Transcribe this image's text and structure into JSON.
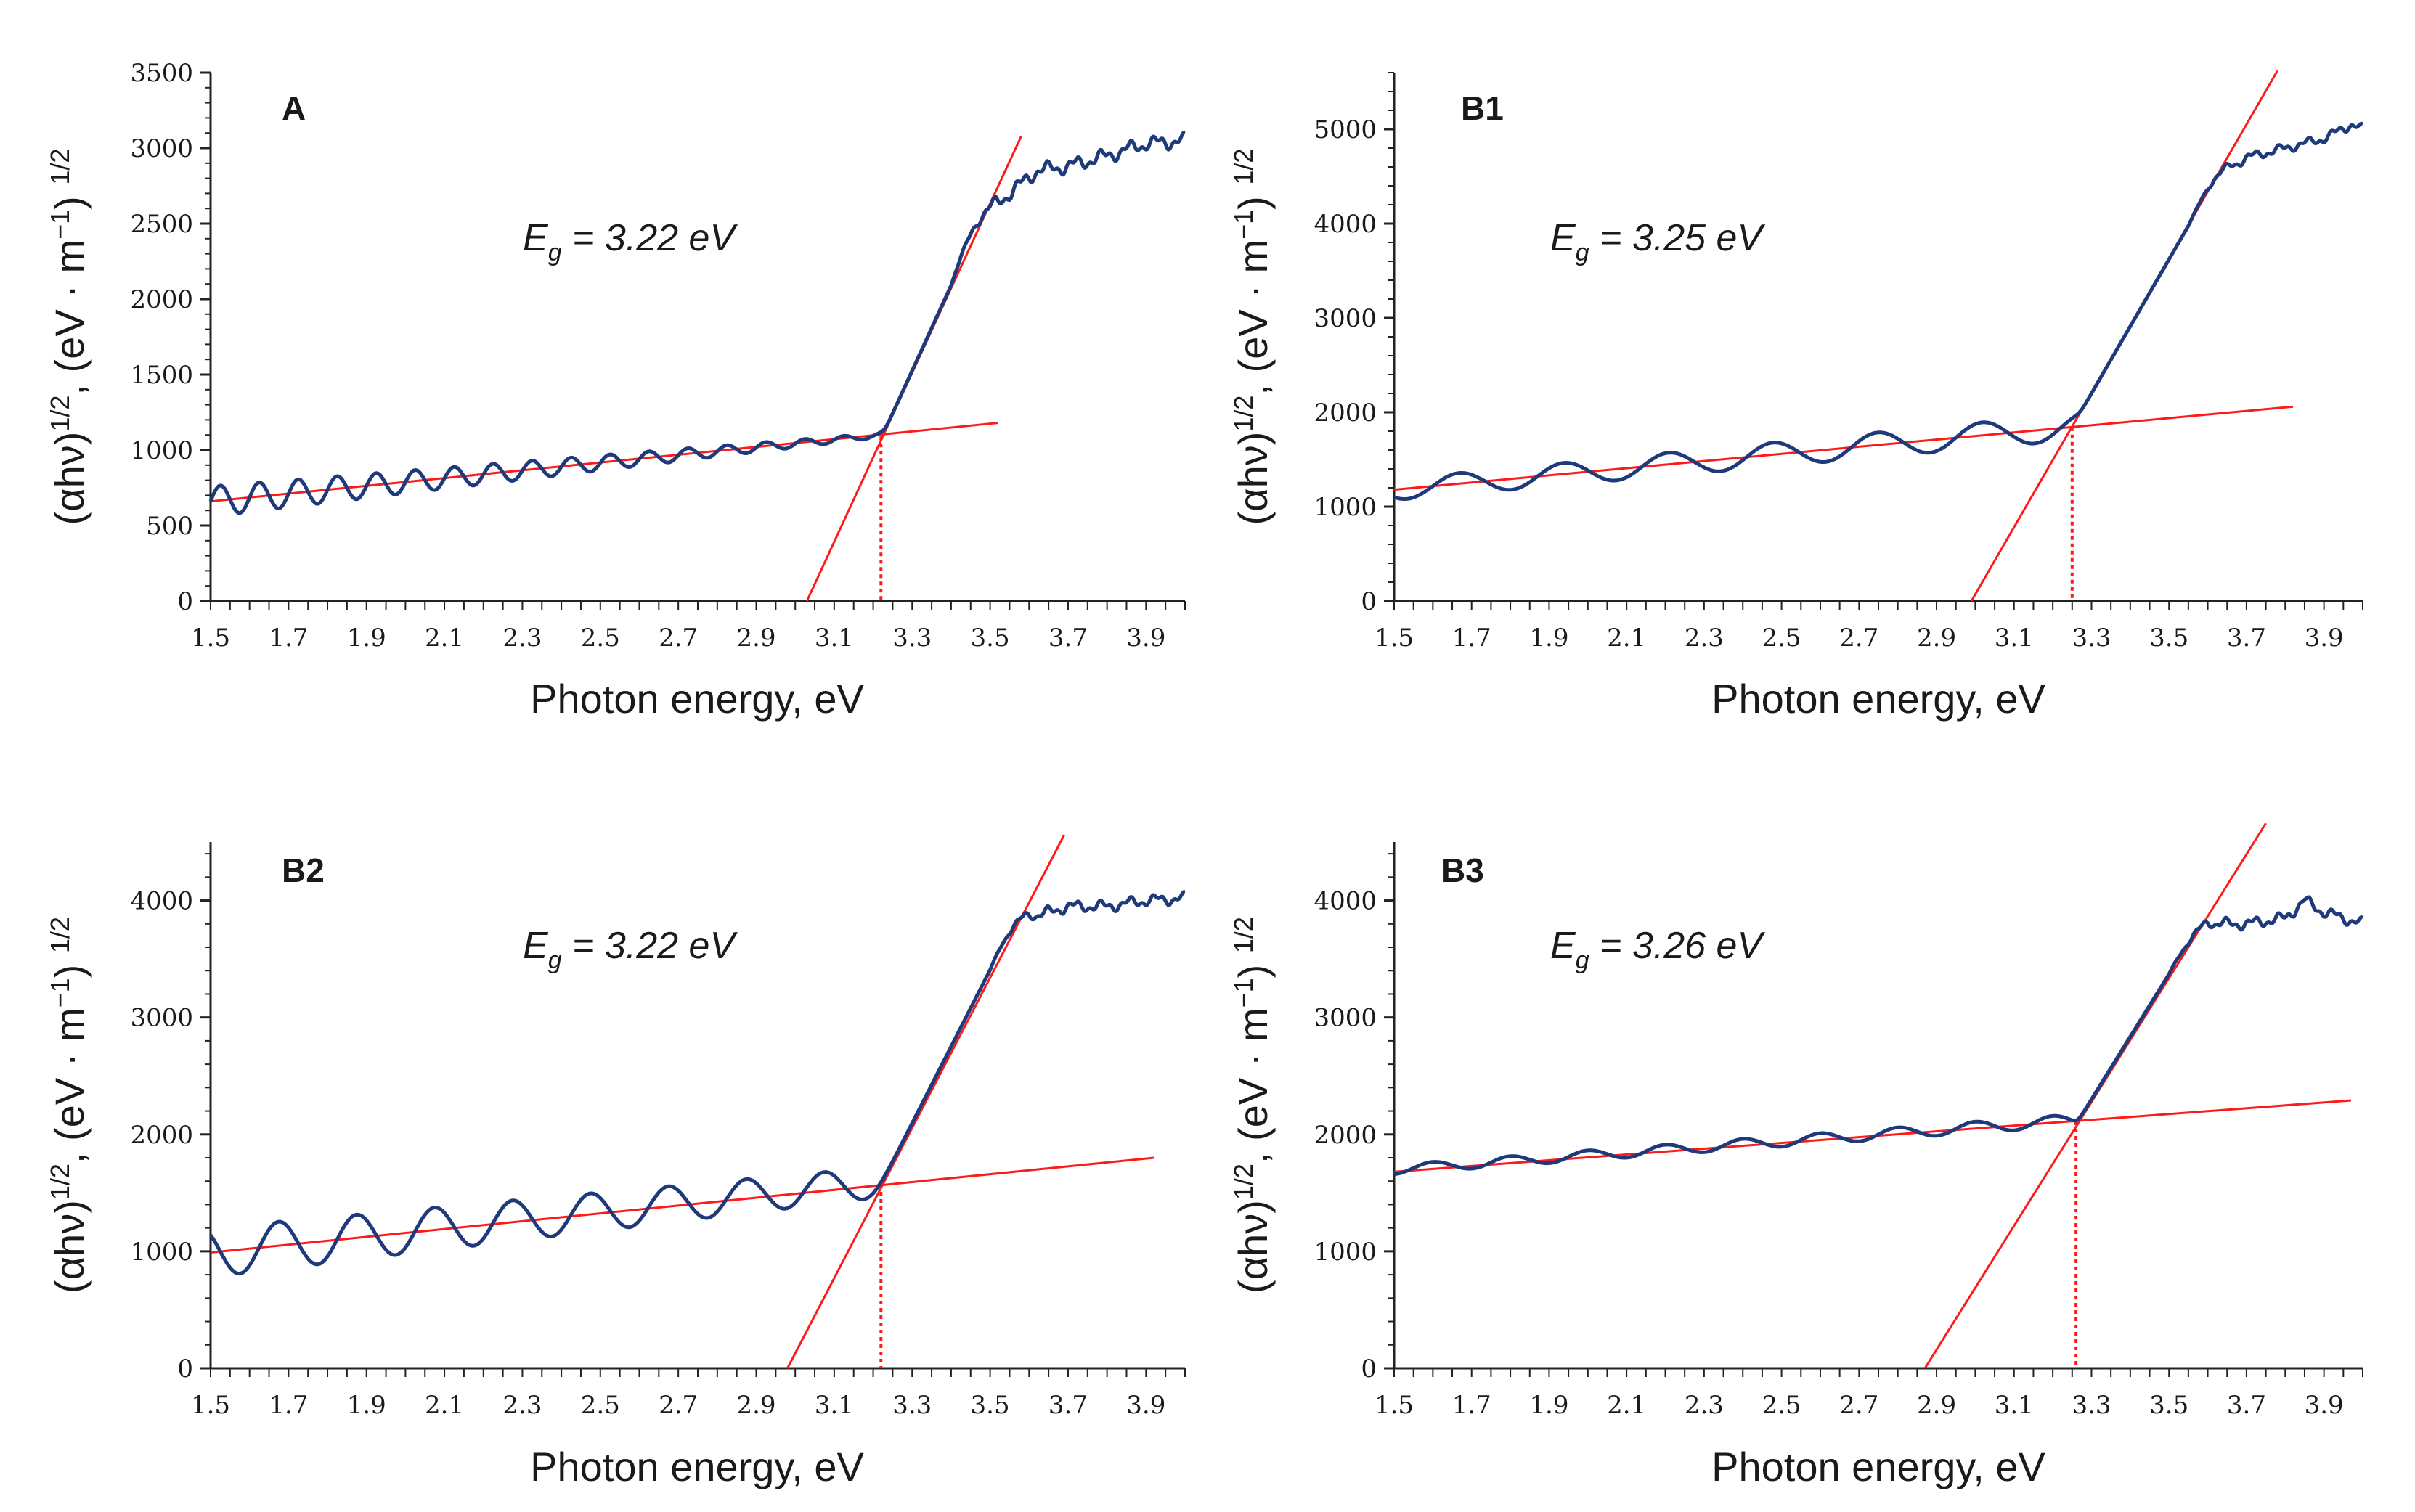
{
  "colors": {
    "curve": "#1f3a7a",
    "fit": "#ff1a1a",
    "axis": "#222222"
  },
  "chart_data": [
    {
      "type": "line",
      "title": "A",
      "eg_label": "E",
      "eg_sub": "g",
      "eg_value": " = 3.22 eV",
      "xlabel": "Photon energy, eV",
      "ylabel_parts": [
        "(αhν)",
        "1/2",
        ", (eV · m",
        "−1",
        ") ",
        "1/2"
      ],
      "xlim": [
        1.5,
        4.0
      ],
      "ylim": [
        0,
        3500
      ],
      "xticks": [
        "1.5",
        "1.7",
        "1.9",
        "2.1",
        "2.3",
        "2.5",
        "2.7",
        "2.9",
        "3.1",
        "3.3",
        "3.5",
        "3.7",
        "3.9"
      ],
      "yticks": [
        "0",
        "500",
        "1000",
        "1500",
        "2000",
        "2500",
        "3000",
        "3500"
      ],
      "baseline": {
        "y0": 660,
        "slope": 255,
        "osc_amp": 100,
        "osc_amp_end": 15,
        "osc_period": 0.1,
        "phase": 0.1
      },
      "edge": {
        "x0": 3.03,
        "slope": 5650
      },
      "plateau": {
        "x": [
          3.4,
          3.5,
          3.55,
          3.62,
          3.7,
          3.8,
          3.9,
          4.0
        ],
        "y": [
          2400,
          2600,
          2700,
          2850,
          2880,
          2950,
          3030,
          3050
        ]
      },
      "fit_lines": [
        {
          "x": [
            1.5,
            3.52
          ],
          "y": [
            660,
            1180
          ]
        },
        {
          "x": [
            3.03,
            3.58
          ],
          "y": [
            0,
            3080
          ]
        }
      ],
      "eg": 3.22,
      "eg_y": 1090
    },
    {
      "type": "line",
      "title": "B1",
      "eg_label": "E",
      "eg_sub": "g",
      "eg_value": " = 3.25 eV",
      "xlabel": "Photon energy, eV",
      "ylabel_parts": [
        "(αhν)",
        "1/2",
        ", (eV · m",
        "−1",
        ") ",
        "1/2"
      ],
      "xlim": [
        1.5,
        4.0
      ],
      "ylim": [
        0,
        5600
      ],
      "xticks": [
        "1.5",
        "1.7",
        "1.9",
        "2.1",
        "2.3",
        "2.5",
        "2.7",
        "2.9",
        "3.1",
        "3.3",
        "3.5",
        "3.7",
        "3.9"
      ],
      "yticks": [
        "0",
        "1000",
        "2000",
        "3000",
        "4000",
        "5000"
      ],
      "baseline": {
        "y0": 1180,
        "slope": 380,
        "osc_amp": 110,
        "osc_amp_end": 140,
        "osc_period": 0.27,
        "phase": 0.1
      },
      "edge": {
        "x0": 2.99,
        "slope": 7100
      },
      "plateau": {
        "x": [
          3.55,
          3.62,
          3.7,
          3.8,
          3.9,
          3.97,
          4.0
        ],
        "y": [
          4200,
          4500,
          4700,
          4800,
          4900,
          5050,
          5000
        ]
      },
      "fit_lines": [
        {
          "x": [
            1.5,
            3.82
          ],
          "y": [
            1180,
            2060
          ]
        },
        {
          "x": [
            2.99,
            3.78
          ],
          "y": [
            0,
            5620
          ]
        }
      ],
      "eg": 3.25,
      "eg_y": 1840
    },
    {
      "type": "line",
      "title": "B2",
      "eg_label": "E",
      "eg_sub": "g",
      "eg_value": " = 3.22 eV",
      "xlabel": "Photon energy, eV",
      "ylabel_parts": [
        "(αhν)",
        "1/2",
        ", (eV · m",
        "−1",
        ") ",
        "1/2"
      ],
      "xlim": [
        1.5,
        4.0
      ],
      "ylim": [
        0,
        4500
      ],
      "xticks": [
        "1.5",
        "1.7",
        "1.9",
        "2.1",
        "2.3",
        "2.5",
        "2.7",
        "2.9",
        "3.1",
        "3.3",
        "3.5",
        "3.7",
        "3.9"
      ],
      "yticks": [
        "0",
        "1000",
        "2000",
        "3000",
        "4000"
      ],
      "baseline": {
        "y0": 990,
        "slope": 350,
        "osc_amp": 210,
        "osc_amp_end": 130,
        "osc_period": 0.2,
        "phase": 0.125
      },
      "edge": {
        "x0": 2.98,
        "slope": 6550
      },
      "plateau": {
        "x": [
          3.5,
          3.6,
          3.7,
          3.8,
          3.9,
          4.0
        ],
        "y": [
          3600,
          3850,
          3950,
          3950,
          4000,
          4020
        ]
      },
      "fit_lines": [
        {
          "x": [
            1.5,
            3.92
          ],
          "y": [
            990,
            1800
          ]
        },
        {
          "x": [
            2.98,
            3.69
          ],
          "y": [
            0,
            4560
          ]
        }
      ],
      "eg": 3.22,
      "eg_y": 1570
    },
    {
      "type": "line",
      "title": "B3",
      "eg_label": "E",
      "eg_sub": "g",
      "eg_value": " = 3.26 eV",
      "xlabel": "Photon energy, eV",
      "ylabel_parts": [
        "(αhν)",
        "1/2",
        ", (eV · m",
        "−1",
        ") ",
        "1/2"
      ],
      "xlim": [
        1.5,
        4.0
      ],
      "ylim": [
        0,
        4500
      ],
      "xticks": [
        "1.5",
        "1.7",
        "1.9",
        "2.1",
        "2.3",
        "2.5",
        "2.7",
        "2.9",
        "3.1",
        "3.3",
        "3.5",
        "3.7",
        "3.9"
      ],
      "yticks": [
        "0",
        "1000",
        "2000",
        "3000",
        "4000"
      ],
      "baseline": {
        "y0": 1700,
        "slope": 240,
        "osc_amp": 40,
        "osc_amp_end": 50,
        "osc_period": 0.2,
        "phase": 0.05
      },
      "edge": {
        "x0": 2.87,
        "slope": 5350
      },
      "plateau": {
        "x": [
          3.5,
          3.6,
          3.7,
          3.8,
          3.85,
          3.9,
          4.0
        ],
        "y": [
          3500,
          3800,
          3800,
          3850,
          4000,
          3900,
          3800
        ]
      },
      "fit_lines": [
        {
          "x": [
            1.5,
            3.97
          ],
          "y": [
            1680,
            2290
          ]
        },
        {
          "x": [
            2.87,
            3.75
          ],
          "y": [
            0,
            4660
          ]
        }
      ],
      "eg": 3.26,
      "eg_y": 2110
    }
  ]
}
